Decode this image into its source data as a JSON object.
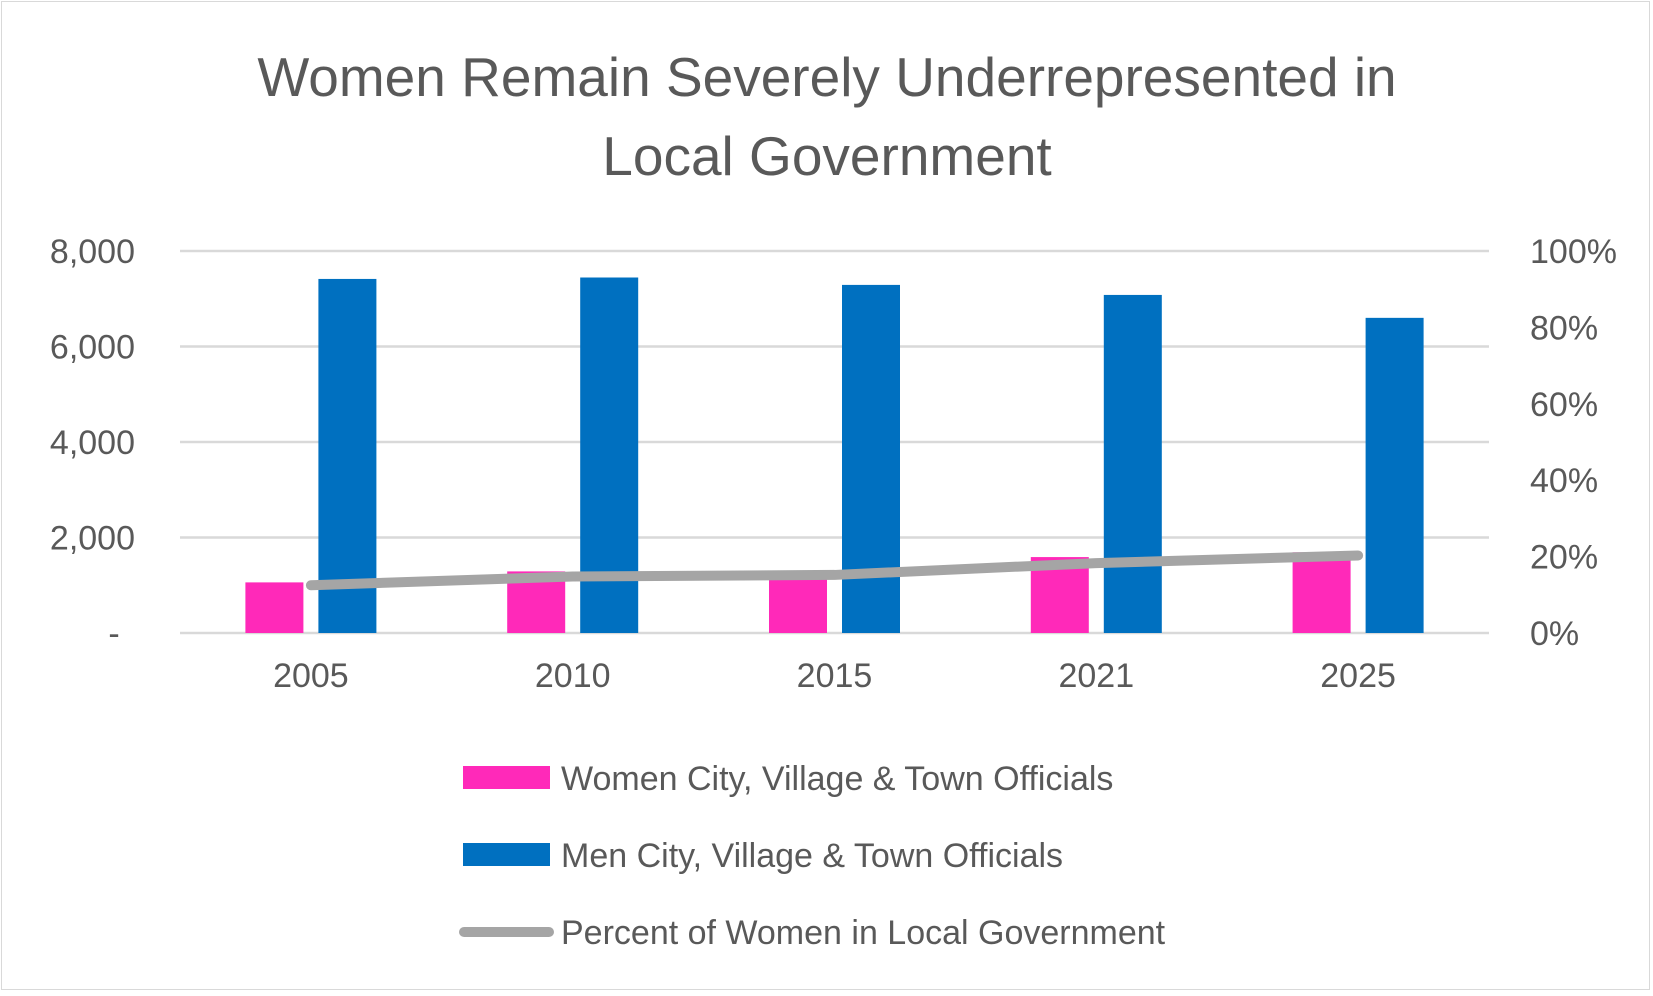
{
  "chart_data": {
    "type": "bar",
    "title_lines": [
      "Women Remain Severely Underrepresented in",
      "Local Government"
    ],
    "categories": [
      "2005",
      "2010",
      "2015",
      "2021",
      "2025"
    ],
    "y_left": {
      "range": [
        0,
        8000
      ],
      "ticks": [
        0,
        2000,
        4000,
        6000,
        8000
      ],
      "tick_labels": [
        "-",
        "2,000",
        "4,000",
        "6,000",
        "8,000"
      ]
    },
    "y_right": {
      "range": [
        0,
        100
      ],
      "ticks": [
        0,
        20,
        40,
        60,
        80,
        100
      ],
      "tick_labels": [
        "0%",
        "20%",
        "40%",
        "60%",
        "80%",
        "100%"
      ]
    },
    "grid": true,
    "legend_position": "bottom",
    "series": [
      {
        "name": "Women City, Village & Town Officials",
        "type": "bar",
        "axis": "left",
        "color": "#FF29B9",
        "values": [
          1060,
          1290,
          1305,
          1590,
          1690
        ]
      },
      {
        "name": "Men City, Village & Town Officials",
        "type": "bar",
        "axis": "left",
        "color": "#0070C0",
        "values": [
          7415,
          7445,
          7290,
          7080,
          6600
        ]
      },
      {
        "name": "Percent of Women in Local Government",
        "type": "line",
        "axis": "right",
        "color": "#A5A5A5",
        "values": [
          12.5,
          14.8,
          15.2,
          18.3,
          20.3
        ]
      }
    ]
  }
}
